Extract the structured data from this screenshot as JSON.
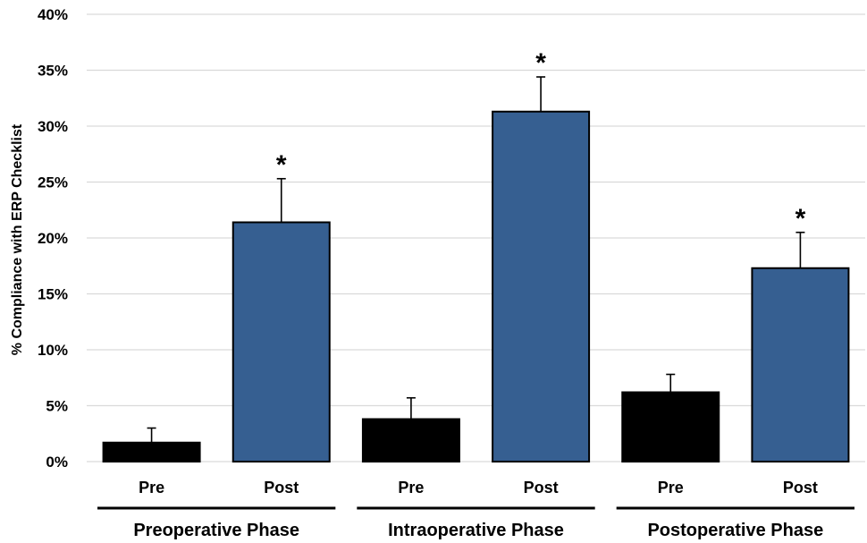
{
  "chart_data": {
    "type": "bar",
    "ylabel": "% Compliance with ERP Checklist",
    "ylim": [
      0,
      40
    ],
    "y_ticks": [
      "0%",
      "5%",
      "10%",
      "15%",
      "20%",
      "25%",
      "30%",
      "35%",
      "40%"
    ],
    "grid": true,
    "groups": [
      {
        "label": "Preoperative Phase",
        "bars": [
          {
            "label": "Pre",
            "value": 1.7,
            "error": 1.3,
            "color": "#000000",
            "marker": ""
          },
          {
            "label": "Post",
            "value": 21.4,
            "error": 3.9,
            "color": "#365f91",
            "marker": "*"
          }
        ]
      },
      {
        "label": "Intraoperative Phase",
        "bars": [
          {
            "label": "Pre",
            "value": 3.8,
            "error": 1.9,
            "color": "#000000",
            "marker": ""
          },
          {
            "label": "Post",
            "value": 31.3,
            "error": 3.1,
            "color": "#365f91",
            "marker": "*"
          }
        ]
      },
      {
        "label": "Postoperative Phase",
        "bars": [
          {
            "label": "Pre",
            "value": 6.2,
            "error": 1.6,
            "color": "#000000",
            "marker": ""
          },
          {
            "label": "Post",
            "value": 17.3,
            "error": 3.2,
            "color": "#365f91",
            "marker": "*"
          }
        ]
      }
    ]
  }
}
